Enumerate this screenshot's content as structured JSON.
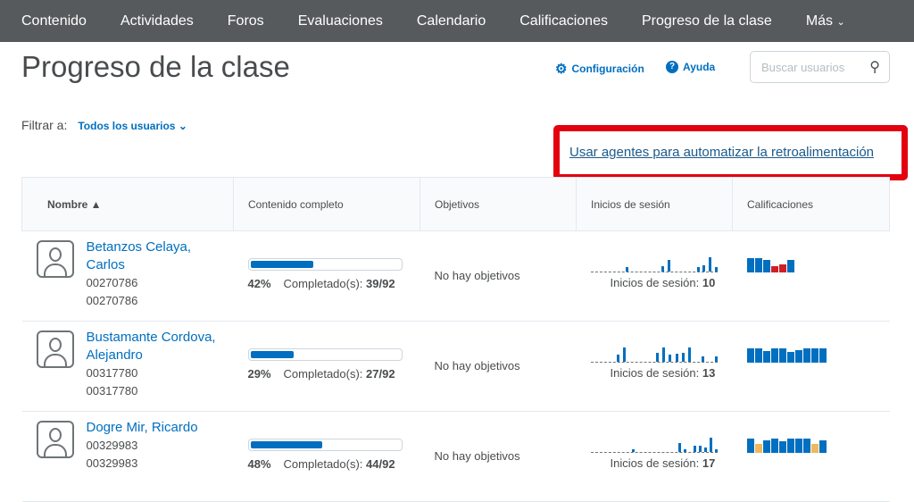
{
  "nav": [
    "Contenido",
    "Actividades",
    "Foros",
    "Evaluaciones",
    "Calendario",
    "Calificaciones",
    "Progreso de la clase",
    "Más"
  ],
  "title": "Progreso de la clase",
  "settings": "Configuración",
  "help": "Ayuda",
  "search_placeholder": "Buscar usuarios",
  "filter": {
    "label": "Filtrar a:",
    "value": "Todos los usuarios"
  },
  "agents_link": "Usar agentes para automatizar la retroalimentación",
  "columns": [
    "Nombre ▲",
    "Contenido completo",
    "Objetivos",
    "Inicios de sesión",
    "Calificaciones"
  ],
  "colors": {
    "blue": "#006fbf",
    "red": "#cd2026",
    "yellow": "#f0b85c"
  },
  "rows": [
    {
      "name": "Betanzos Celaya, Carlos",
      "id1": "00270786",
      "id2": "00270786",
      "percent": 42,
      "pct_label": "42%",
      "completed_label": "Completado(s):",
      "completed": "39/92",
      "objectives": "No hay objetivos",
      "logins_label": "Inicios de sesión:",
      "logins": "10",
      "login_spark": [
        0,
        0,
        0,
        0,
        0,
        0,
        0.3,
        0,
        0,
        0,
        0,
        0,
        0.35,
        0.8,
        0,
        0,
        0,
        0,
        0.3,
        0.45,
        1,
        0.3
      ],
      "grades": [
        [
          1,
          "blue"
        ],
        [
          1,
          "blue"
        ],
        [
          0.85,
          "blue"
        ],
        [
          0.45,
          "red"
        ],
        [
          0.55,
          "red"
        ],
        [
          0.9,
          "blue"
        ]
      ]
    },
    {
      "name": "Bustamante Cordova, Alejandro",
      "id1": "00317780",
      "id2": "00317780",
      "percent": 29,
      "pct_label": "29%",
      "completed_label": "Completado(s):",
      "completed": "27/92",
      "objectives": "No hay objetivos",
      "logins_label": "Inicios de sesión:",
      "logins": "13",
      "login_spark": [
        0,
        0,
        0,
        0,
        0.5,
        1,
        0,
        0,
        0,
        0,
        0.6,
        1,
        0.5,
        0.55,
        0.6,
        1,
        0,
        0.4,
        0,
        0.4
      ],
      "grades": [
        [
          1,
          "blue"
        ],
        [
          1,
          "blue"
        ],
        [
          0.8,
          "blue"
        ],
        [
          1,
          "blue"
        ],
        [
          1,
          "blue"
        ],
        [
          0.75,
          "blue"
        ],
        [
          0.9,
          "blue"
        ],
        [
          1,
          "blue"
        ],
        [
          1,
          "blue"
        ],
        [
          1,
          "blue"
        ]
      ]
    },
    {
      "name": "Dogre Mir, Ricardo",
      "id1": "00329983",
      "id2": "00329983",
      "percent": 48,
      "pct_label": "48%",
      "completed_label": "Completado(s):",
      "completed": "44/92",
      "objectives": "No hay objetivos",
      "logins_label": "Inicios de sesión:",
      "logins": "17",
      "login_spark": [
        0,
        0,
        0,
        0,
        0,
        0,
        0,
        0,
        0.2,
        0,
        0,
        0,
        0,
        0,
        0,
        0,
        0,
        0.6,
        0.2,
        0,
        0.45,
        0.45,
        0.3,
        1,
        0.2
      ],
      "grades": [
        [
          1,
          "blue"
        ],
        [
          0.6,
          "yellow"
        ],
        [
          0.85,
          "blue"
        ],
        [
          1,
          "blue"
        ],
        [
          0.8,
          "blue"
        ],
        [
          1,
          "blue"
        ],
        [
          1,
          "blue"
        ],
        [
          1,
          "blue"
        ],
        [
          0.6,
          "yellow"
        ],
        [
          0.9,
          "blue"
        ]
      ]
    }
  ]
}
